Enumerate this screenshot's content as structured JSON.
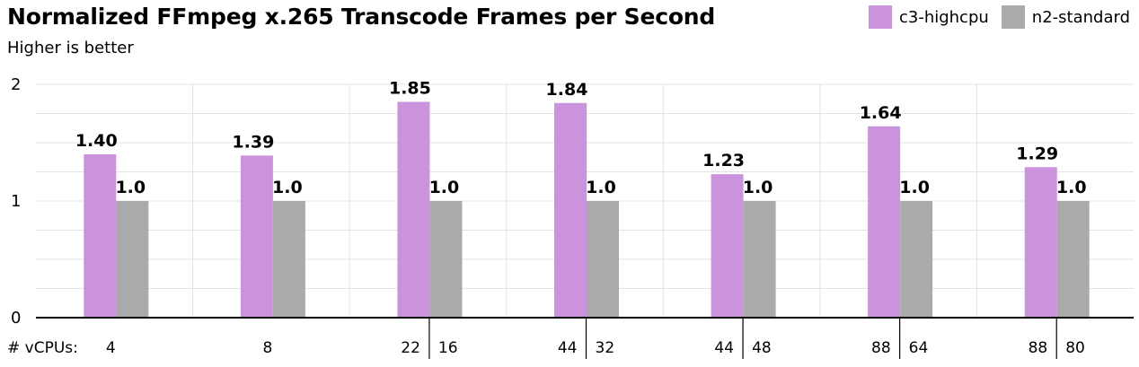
{
  "chart_data": {
    "type": "bar",
    "title": "Normalized FFmpeg x.265 Transcode Frames per Second",
    "subtitle": "Higher is better",
    "ylim": [
      0,
      2
    ],
    "yticks": [
      "0",
      "1",
      "2"
    ],
    "grid": true,
    "legend_position": "top-right",
    "xaxis_label": "# vCPUs:",
    "groups": [
      {
        "c3_vcpus": "4",
        "n2_vcpus": ""
      },
      {
        "c3_vcpus": "8",
        "n2_vcpus": ""
      },
      {
        "c3_vcpus": "22",
        "n2_vcpus": "16"
      },
      {
        "c3_vcpus": "44",
        "n2_vcpus": "32"
      },
      {
        "c3_vcpus": "44",
        "n2_vcpus": "48"
      },
      {
        "c3_vcpus": "88",
        "n2_vcpus": "64"
      },
      {
        "c3_vcpus": "88",
        "n2_vcpus": "80"
      }
    ],
    "series": [
      {
        "name": "c3-highcpu",
        "color": "#cc93dd",
        "values": [
          1.4,
          1.39,
          1.85,
          1.84,
          1.23,
          1.64,
          1.29
        ],
        "labels": [
          "1.40",
          "1.39",
          "1.85",
          "1.84",
          "1.23",
          "1.64",
          "1.29"
        ]
      },
      {
        "name": "n2-standard",
        "color": "#aaaaaa",
        "values": [
          1.0,
          1.0,
          1.0,
          1.0,
          1.0,
          1.0,
          1.0
        ],
        "labels": [
          "1.0",
          "1.0",
          "1.0",
          "1.0",
          "1.0",
          "1.0",
          "1.0"
        ]
      }
    ]
  }
}
